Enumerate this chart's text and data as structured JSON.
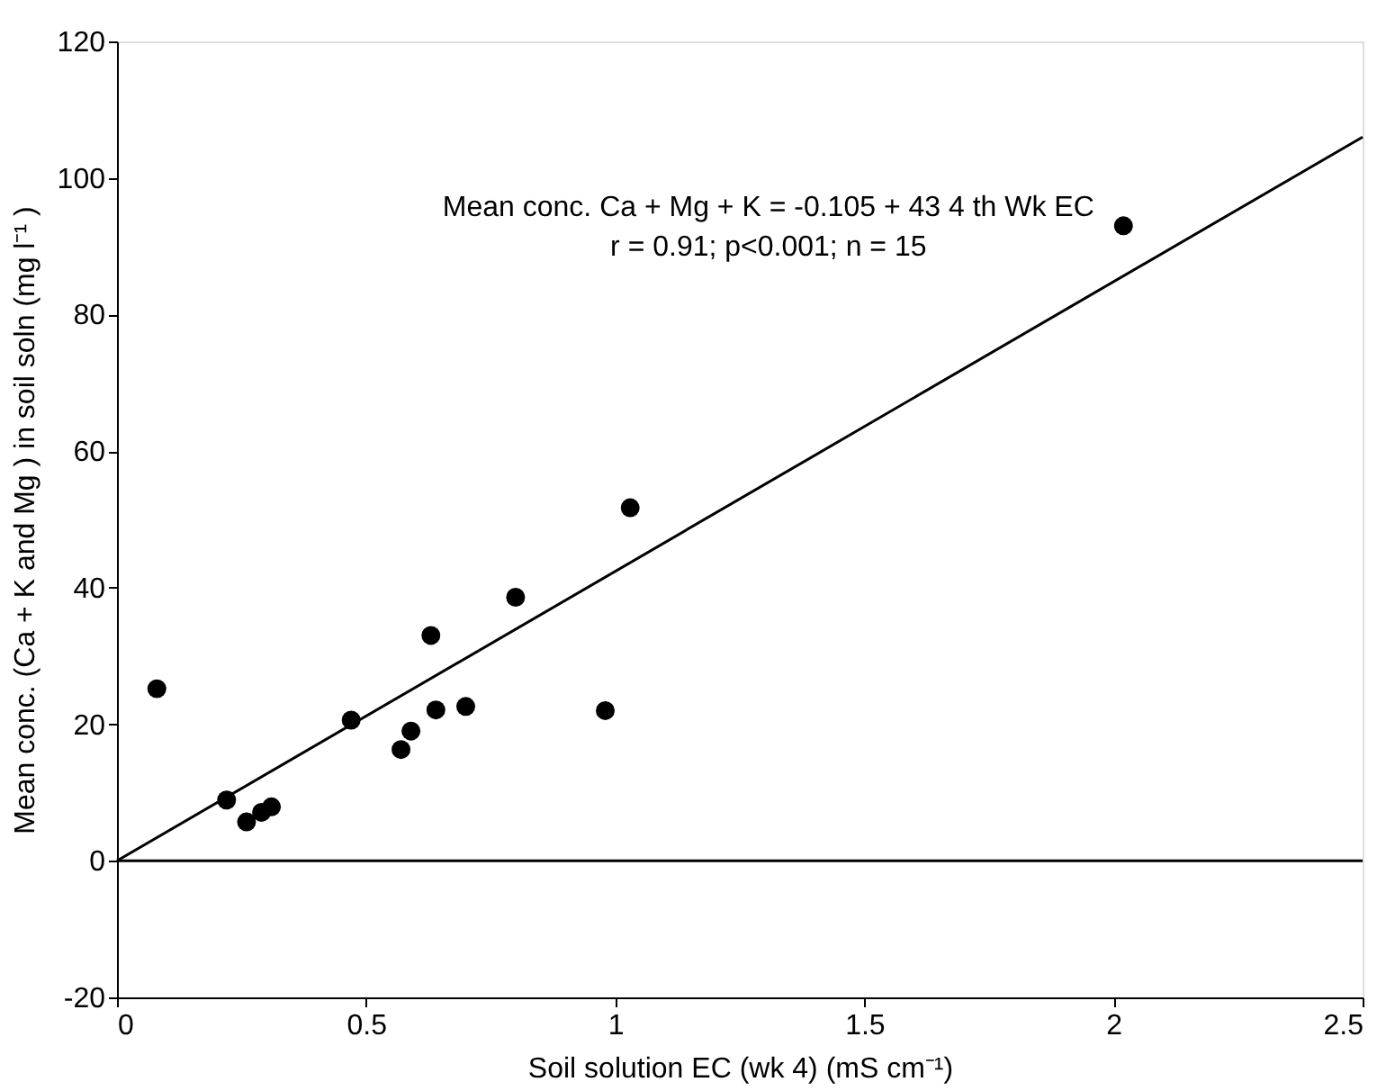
{
  "chart_data": {
    "type": "scatter",
    "xlabel": "Soil solution EC (wk 4) (mS cm⁻¹)",
    "ylabel": "Mean conc. (Ca + K and Mg )  in  soil soln (mg l⁻¹ )",
    "x": [
      0.08,
      0.22,
      0.26,
      0.29,
      0.31,
      0.47,
      0.57,
      0.59,
      0.63,
      0.64,
      0.7,
      0.8,
      0.98,
      1.03,
      2.02
    ],
    "series": [
      {
        "color": "#000000",
        "values": [
          25.2,
          8.9,
          5.7,
          7.1,
          7.9,
          20.6,
          16.3,
          19.0,
          33.0,
          22.1,
          22.6,
          38.6,
          22.0,
          51.7,
          93.0
        ]
      },
      {
        "type": "line",
        "color": "#000000",
        "marker": "none",
        "x": [
          0,
          2.5
        ],
        "values": [
          0,
          106
        ]
      }
    ],
    "marker": "circle",
    "xlim": [
      0,
      2.5
    ],
    "xticks": [
      0,
      0.5,
      1,
      1.5,
      2,
      2.5
    ],
    "ylim": [
      -20,
      120
    ],
    "yticks": [
      -20,
      0,
      20,
      40,
      60,
      80,
      100,
      120
    ],
    "grid": false,
    "ref_lines": [
      {
        "axis": "y",
        "value": 0,
        "color": "#000000"
      }
    ],
    "annotations": [
      "Mean conc. Ca + Mg + K = -0.105 + 43 4 th Wk EC",
      "r = 0.91; p<0.001; n = 15"
    ]
  }
}
